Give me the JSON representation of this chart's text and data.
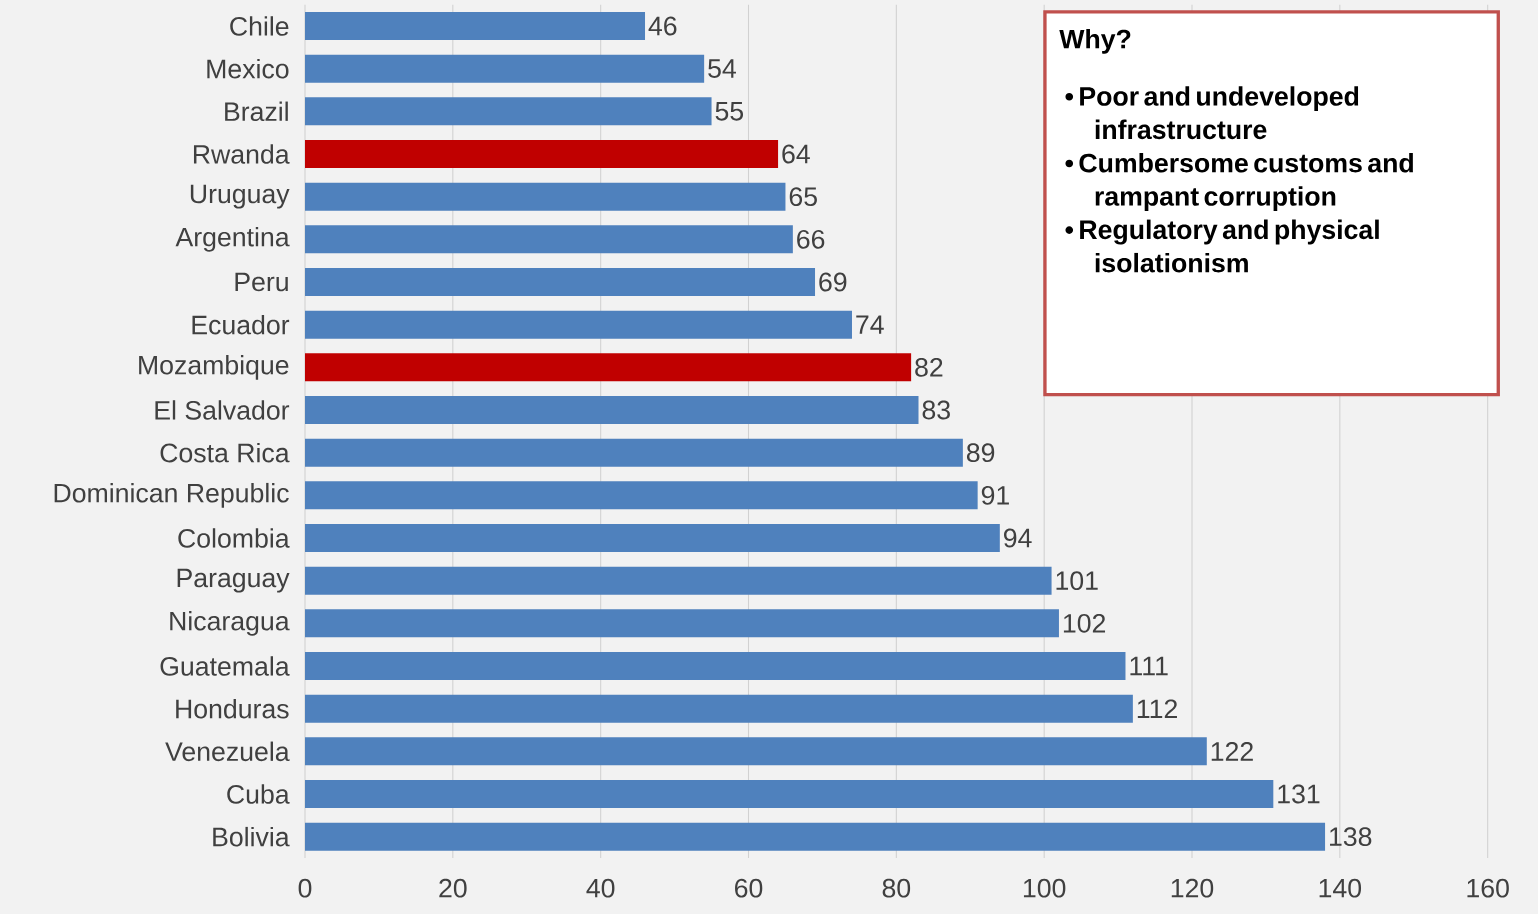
{
  "chart_data": {
    "type": "bar",
    "orientation": "horizontal",
    "categories": [
      "Chile",
      "Mexico",
      "Brazil",
      "Rwanda",
      "Uruguay",
      "Argentina",
      "Peru",
      "Ecuador",
      "Mozambique",
      "El Salvador",
      "Costa Rica",
      "Dominican Republic",
      "Colombia",
      "Paraguay",
      "Nicaragua",
      "Guatemala",
      "Honduras",
      "Venezuela",
      "Cuba",
      "Bolivia"
    ],
    "values": [
      46,
      54,
      55,
      64,
      65,
      66,
      69,
      74,
      82,
      83,
      89,
      91,
      94,
      101,
      102,
      111,
      112,
      122,
      131,
      138
    ],
    "colors": [
      "#4f81bd",
      "#4f81bd",
      "#4f81bd",
      "#c00000",
      "#4f81bd",
      "#4f81bd",
      "#4f81bd",
      "#4f81bd",
      "#c00000",
      "#4f81bd",
      "#4f81bd",
      "#4f81bd",
      "#4f81bd",
      "#4f81bd",
      "#4f81bd",
      "#4f81bd",
      "#4f81bd",
      "#4f81bd",
      "#4f81bd",
      "#4f81bd"
    ],
    "xlim": [
      0,
      160
    ],
    "xticks": [
      0,
      20,
      40,
      60,
      80,
      100,
      120,
      140,
      160
    ],
    "grid": "x",
    "data_labels": true,
    "annotations": [
      "Why?",
      "• Poor and undeveloped infrastructure",
      "• Cumbersome customs and rampant corruption",
      "• Regulatory and physical isolationism"
    ]
  }
}
